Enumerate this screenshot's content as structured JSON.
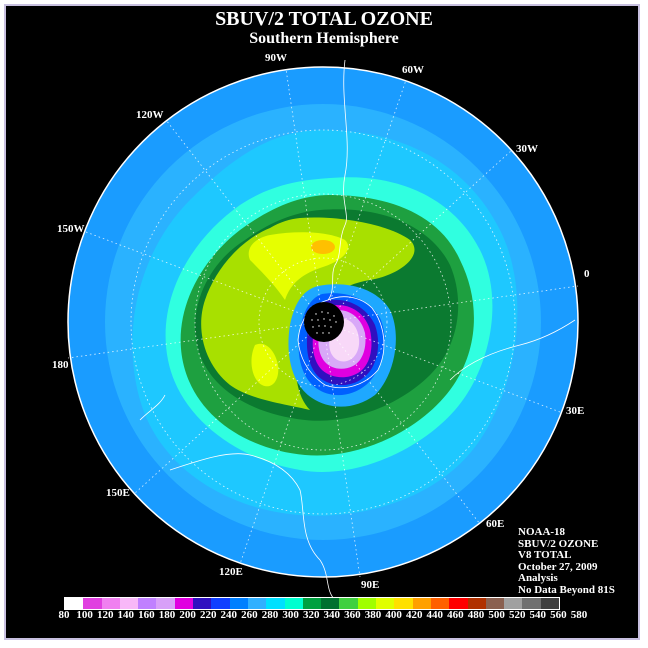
{
  "title": "SBUV/2 TOTAL OZONE",
  "subtitle": "Southern Hemisphere",
  "longitude_labels": [
    "90W",
    "60W",
    "30W",
    "0",
    "30E",
    "60E",
    "90E",
    "120E",
    "150E",
    "180",
    "150W",
    "120W"
  ],
  "info": {
    "satellite": "NOAA-18",
    "instrument": "SBUV/2 OZONE",
    "product": "V8 TOTAL",
    "date": "October 27, 2009",
    "type": "Analysis",
    "note": "No Data Beyond 81S"
  },
  "scale": {
    "labels": [
      "80",
      "100",
      "120",
      "140",
      "160",
      "180",
      "200",
      "220",
      "240",
      "260",
      "280",
      "300",
      "320",
      "340",
      "360",
      "380",
      "400",
      "420",
      "440",
      "460",
      "480",
      "500",
      "520",
      "540",
      "560",
      "580"
    ],
    "colors": [
      "#ffffff",
      "#e040e0",
      "#f080f0",
      "#f8b8f8",
      "#c080ff",
      "#d8a0f8",
      "#e000e0",
      "#3010c0",
      "#1040ff",
      "#0080ff",
      "#30b0ff",
      "#00e0ff",
      "#00ffd0",
      "#00a040",
      "#007030",
      "#40d040",
      "#a0ff00",
      "#e0ff00",
      "#ffe000",
      "#ffa000",
      "#ff6000",
      "#ff0000",
      "#b03000",
      "#8a6050",
      "#a0a0a0",
      "#707070",
      "#404040"
    ]
  },
  "colors": {
    "background": "#000000",
    "ocean_blue": "#1aa0ff",
    "light_blue": "#30b8ff",
    "cyan": "#20d8ff",
    "aqua": "#30ffe0",
    "dark_green": "#0b7a30",
    "mid_green": "#1ea040",
    "lime": "#9fe000",
    "yellow": "#e6ff00",
    "orange": "#ffc000",
    "hole_purple": "#e0c0ff",
    "magenta": "#e000e0"
  }
}
